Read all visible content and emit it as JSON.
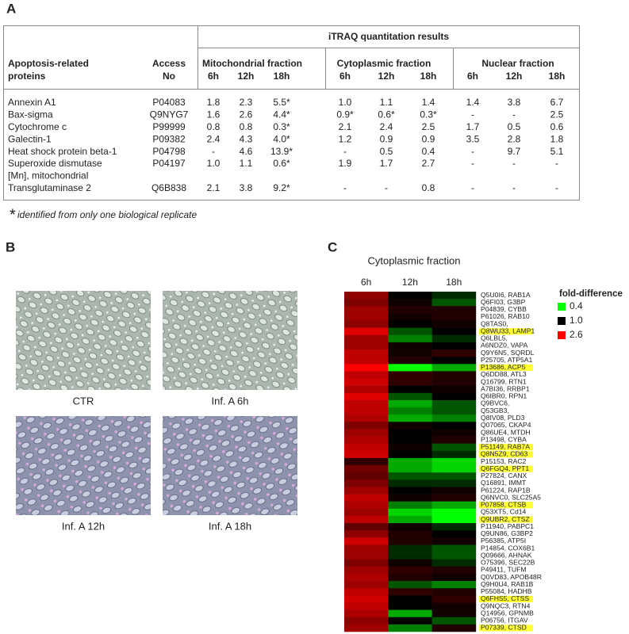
{
  "panel_a": {
    "label": "A",
    "table": {
      "group_header": "iTRAQ quantitation results",
      "protein_header": [
        "Apoptosis-related",
        "proteins"
      ],
      "access_header": [
        "Access",
        "No"
      ],
      "fractions": [
        {
          "name": "Mitochondrial fraction",
          "times": [
            "6h",
            "12h",
            "18h"
          ]
        },
        {
          "name": "Cytoplasmic fraction",
          "times": [
            "6h",
            "12h",
            "18h"
          ]
        },
        {
          "name": "Nuclear fraction",
          "times": [
            "6h",
            "12h",
            "18h"
          ]
        }
      ],
      "rows": [
        {
          "name": [
            "Annexin A1"
          ],
          "accession": "P04083",
          "values": [
            "1.8",
            "2.3",
            "5.5*",
            "1.0",
            "1.1",
            "1.4",
            "1.4",
            "3.8",
            "6.7"
          ]
        },
        {
          "name": [
            "Bax-sigma"
          ],
          "accession": "Q9NYG7",
          "values": [
            "1.6",
            "2.6",
            "4.4*",
            "0.9*",
            "0.6*",
            "0.3*",
            "-",
            "-",
            "2.5"
          ]
        },
        {
          "name": [
            "Cytochrome c"
          ],
          "accession": "P99999",
          "values": [
            "0.8",
            "0.8",
            "0.3*",
            "2.1",
            "2.4",
            "2.5",
            "1.7",
            "0.5",
            "0.6"
          ]
        },
        {
          "name": [
            "Galectin-1"
          ],
          "accession": "P09382",
          "values": [
            "2.4",
            "4.3",
            "4.0*",
            "1.2",
            "0.9",
            "0.9",
            "3.5",
            "2.8",
            "1.8"
          ]
        },
        {
          "name": [
            "Heat shock protein beta-1"
          ],
          "accession": "P04798",
          "values": [
            "-",
            "4.6",
            "13.9*",
            "-",
            "0.5",
            "0.4",
            "-",
            "9.7",
            "5.1"
          ]
        },
        {
          "name": [
            "Superoxide dismutase",
            "[Mn], mitochondrial"
          ],
          "accession": "P04197",
          "values": [
            "1.0",
            "1.1",
            "0.6*",
            "1.9",
            "1.7",
            "2.7",
            "-",
            "-",
            "-"
          ]
        },
        {
          "name": [
            "Transglutaminase 2"
          ],
          "accession": "Q6B838",
          "values": [
            "2.1",
            "3.8",
            "9.2*",
            "-",
            "-",
            "0.8",
            "-",
            "-",
            "-"
          ]
        }
      ]
    },
    "footnote": {
      "mark": "*",
      "text": "identified from only one biological replicate"
    }
  },
  "panel_b": {
    "label": "B",
    "images": [
      {
        "caption": "CTR"
      },
      {
        "caption": "Inf. A 6h"
      },
      {
        "caption": "Inf. A 12h"
      },
      {
        "caption": "Inf. A 18h"
      }
    ]
  },
  "panel_c": {
    "label": "C"
  },
  "chart_data": {
    "type": "heatmap",
    "title": "Cytoplasmic fraction",
    "columns": [
      "6h",
      "12h",
      "18h"
    ],
    "categories": [
      "Q5U0I6, RAB1A",
      "Q6FI03, G3BP",
      "P04839, CYBB",
      "P61026, RAB10",
      "Q8TAS0,",
      "Q8WU33, LAMP1",
      "Q6LBL5,",
      "A6NDZ0, VAPA",
      "Q9Y6N5, SQRDL",
      "P25705, ATP5A1",
      "P13686, ACP5",
      "Q6DD88, ATL3",
      "Q16799, RTN1",
      "A7BI36, RRBP1",
      "Q6IBR0, RPN1",
      "Q9BVC6,",
      "Q53GB3,",
      "Q8IV08, PLD3",
      "Q07065, CKAP4",
      "Q86UE4, MTDH",
      "P13498, CYBA",
      "P51149, RAB7A",
      "Q8N5Z9, CD63",
      "P15153, RAC2",
      "Q6FGQ4, PPT1",
      "P27824, CANX",
      "Q16891, IMMT",
      "P61224, RAP1B",
      "Q6NVC0, SLC25A5",
      "P07858, CTSB",
      "Q53XT5, Cd14",
      "Q9UBR2, CTSZ",
      "P11940, PABPC1",
      "Q9UN86, G3BP2",
      "P56385, ATP5I",
      "P14854, COX6B1",
      "Q09666, AHNAK",
      "O75396, SEC22B",
      "P49411, TUFM",
      "Q0VD83, APOB48R",
      "Q9H0U4, RAB1B",
      "P55084, HADHB",
      "Q6FHS5, CTSS",
      "Q9NQC3, RTN4",
      "Q14956, GPNMB",
      "P06756, ITGAV",
      "P07339, CTSD"
    ],
    "highlighted": [
      false,
      false,
      false,
      false,
      false,
      true,
      false,
      false,
      false,
      false,
      true,
      false,
      false,
      false,
      false,
      false,
      false,
      false,
      false,
      false,
      false,
      true,
      true,
      false,
      true,
      false,
      false,
      false,
      false,
      true,
      false,
      true,
      false,
      false,
      false,
      false,
      false,
      false,
      false,
      false,
      false,
      false,
      true,
      false,
      false,
      false,
      true
    ],
    "highlight_color": "#ffff33",
    "values": [
      [
        1.9,
        1.0,
        0.9
      ],
      [
        1.8,
        1.1,
        0.8
      ],
      [
        2.0,
        1.2,
        1.2
      ],
      [
        2.0,
        1.1,
        1.2
      ],
      [
        1.9,
        1.0,
        1.1
      ],
      [
        2.4,
        0.8,
        1.0
      ],
      [
        2.0,
        0.7,
        0.9
      ],
      [
        2.0,
        1.1,
        1.0
      ],
      [
        2.2,
        1.1,
        1.3
      ],
      [
        2.2,
        1.2,
        1.0
      ],
      [
        2.6,
        0.4,
        0.6
      ],
      [
        2.2,
        1.3,
        1.2
      ],
      [
        2.3,
        1.3,
        1.2
      ],
      [
        2.1,
        1.0,
        1.1
      ],
      [
        2.4,
        0.8,
        1.0
      ],
      [
        2.2,
        0.6,
        0.8
      ],
      [
        2.2,
        0.7,
        0.8
      ],
      [
        2.1,
        0.6,
        0.7
      ],
      [
        1.8,
        1.1,
        1.0
      ],
      [
        2.0,
        1.0,
        1.1
      ],
      [
        2.1,
        1.0,
        1.2
      ],
      [
        2.2,
        1.1,
        0.8
      ],
      [
        2.3,
        1.0,
        0.9
      ],
      [
        1.3,
        0.6,
        0.5
      ],
      [
        1.7,
        0.6,
        0.5
      ],
      [
        1.6,
        0.8,
        0.8
      ],
      [
        1.8,
        0.9,
        0.9
      ],
      [
        2.0,
        1.0,
        1.1
      ],
      [
        2.2,
        1.1,
        1.2
      ],
      [
        2.1,
        0.7,
        0.6
      ],
      [
        2.0,
        0.5,
        0.4
      ],
      [
        2.2,
        0.6,
        0.4
      ],
      [
        1.6,
        1.1,
        0.9
      ],
      [
        1.9,
        1.2,
        1.0
      ],
      [
        2.3,
        1.2,
        1.1
      ],
      [
        2.0,
        0.9,
        0.8
      ],
      [
        2.0,
        0.9,
        0.8
      ],
      [
        1.8,
        1.1,
        0.9
      ],
      [
        2.0,
        1.3,
        1.2
      ],
      [
        2.1,
        1.2,
        1.1
      ],
      [
        2.0,
        0.8,
        0.7
      ],
      [
        2.2,
        1.3,
        1.2
      ],
      [
        2.3,
        1.0,
        1.3
      ],
      [
        2.2,
        1.0,
        1.1
      ],
      [
        2.1,
        0.6,
        1.1
      ],
      [
        1.9,
        1.0,
        0.8
      ],
      [
        2.0,
        0.7,
        1.2
      ]
    ],
    "legend_title": "fold-difference",
    "colorscale": [
      {
        "value": 0.4,
        "color": "#00ff00"
      },
      {
        "value": 1,
        "label": "1.0",
        "color": "#000000"
      },
      {
        "value": 2.6,
        "color": "#ff0000"
      }
    ]
  }
}
